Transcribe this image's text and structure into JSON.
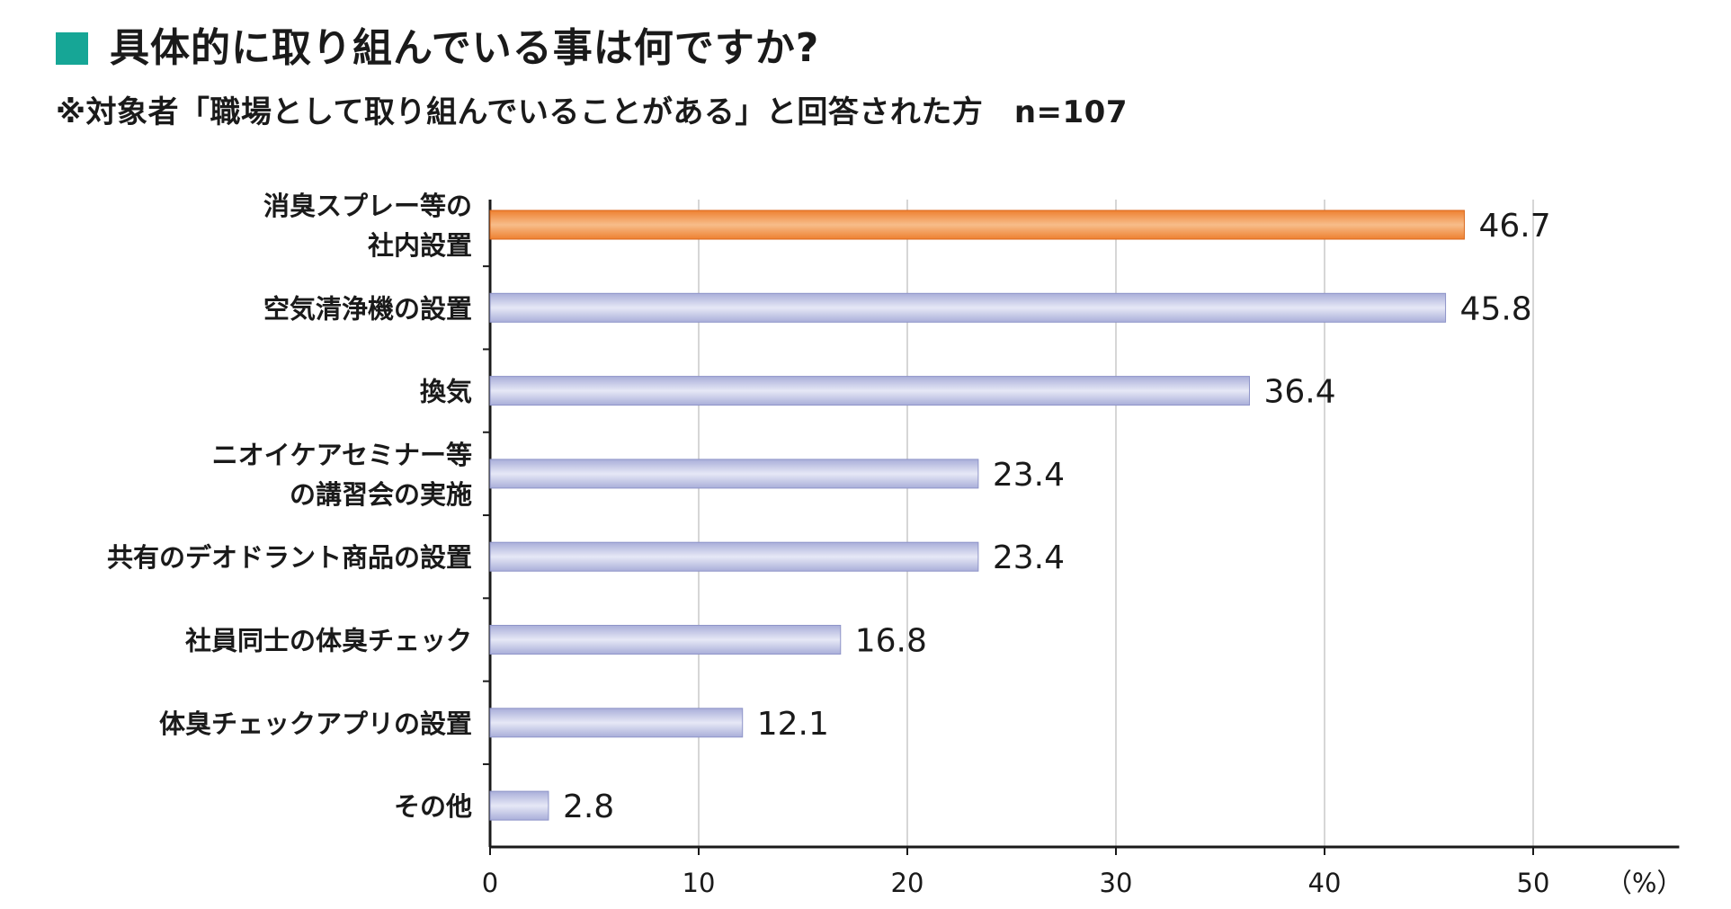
{
  "header": {
    "title": "具体的に取り組んでいる事は何ですか?",
    "subtitle": "※対象者「職場として取り組んでいることがある」と回答された方　n=107"
  },
  "colors": {
    "accent_square": "#16a696",
    "highlight_bar": "#ee8030",
    "highlight_bar_light": "#f7bd8a",
    "default_bar": "#a9aed9",
    "default_bar_light": "#e6e8f6",
    "gridline": "#c8c8c8",
    "axis": "#1a1a1a"
  },
  "chart_data": {
    "type": "bar",
    "orientation": "horizontal",
    "categories": [
      [
        "消臭スプレー等の",
        "社内設置"
      ],
      [
        "空気清浄機の設置"
      ],
      [
        "換気"
      ],
      [
        "ニオイケアセミナー等",
        "の講習会の実施"
      ],
      [
        "共有のデオドラント商品の設置"
      ],
      [
        "社員同士の体臭チェック"
      ],
      [
        "体臭チェックアプリの設置"
      ],
      [
        "その他"
      ]
    ],
    "values": [
      46.7,
      45.8,
      36.4,
      23.4,
      23.4,
      16.8,
      12.1,
      2.8
    ],
    "value_labels": [
      "46.7",
      "45.8",
      "36.4",
      "23.4",
      "23.4",
      "16.8",
      "12.1",
      "2.8"
    ],
    "highlight_index": 0,
    "xlim": [
      0,
      57
    ],
    "xticks": [
      0,
      10,
      20,
      30,
      40,
      50
    ],
    "xtick_labels": [
      "0",
      "10",
      "20",
      "30",
      "40",
      "50"
    ],
    "unit_label": "（%）",
    "grid": true
  }
}
